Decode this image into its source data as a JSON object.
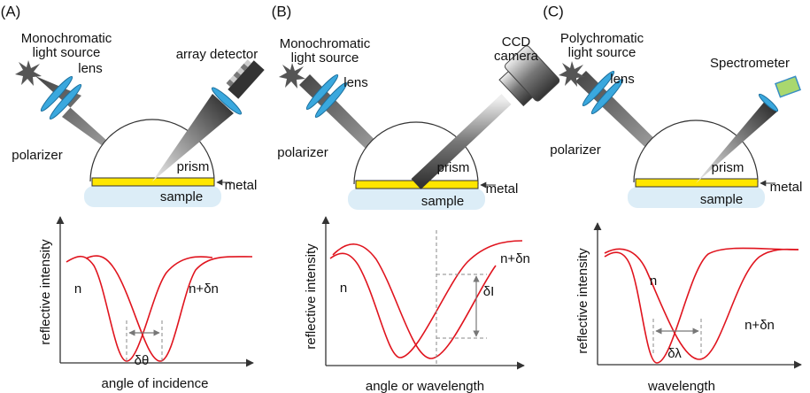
{
  "panels": [
    {
      "label": "(A)",
      "source_label": [
        "Monochromatic",
        "light source"
      ],
      "lens_label": "lens",
      "polarizer_label": "polarizer",
      "detector_label": [
        "array detector"
      ],
      "prism_label": "prism",
      "metal_label": "metal",
      "sample_label": "sample",
      "y_axis_label": "reflective intensity",
      "x_axis_label": "angle of incidence",
      "curve_labels": [
        "n",
        "n+δn"
      ],
      "shift_label": "δθ"
    },
    {
      "label": "(B)",
      "source_label": [
        "Monochromatic",
        "light source"
      ],
      "lens_label": "lens",
      "polarizer_label": "polarizer",
      "detector_label": [
        "CCD",
        "camera"
      ],
      "prism_label": "prism",
      "metal_label": "metal",
      "sample_label": "sample",
      "y_axis_label": "reflective intensity",
      "x_axis_label": "angle or wavelength",
      "curve_labels": [
        "n",
        "n+δn"
      ],
      "shift_label": "δI"
    },
    {
      "label": "(C)",
      "source_label": [
        "Polychromatic",
        "light source"
      ],
      "lens_label": "lens",
      "polarizer_label": "polarizer",
      "detector_label": [
        "Spectrometer"
      ],
      "prism_label": "prism",
      "metal_label": "metal",
      "sample_label": "sample",
      "y_axis_label": "reflective intensity",
      "x_axis_label": "wavelength",
      "curve_labels": [
        "n",
        "n+δn"
      ],
      "shift_label": "δλ"
    }
  ]
}
